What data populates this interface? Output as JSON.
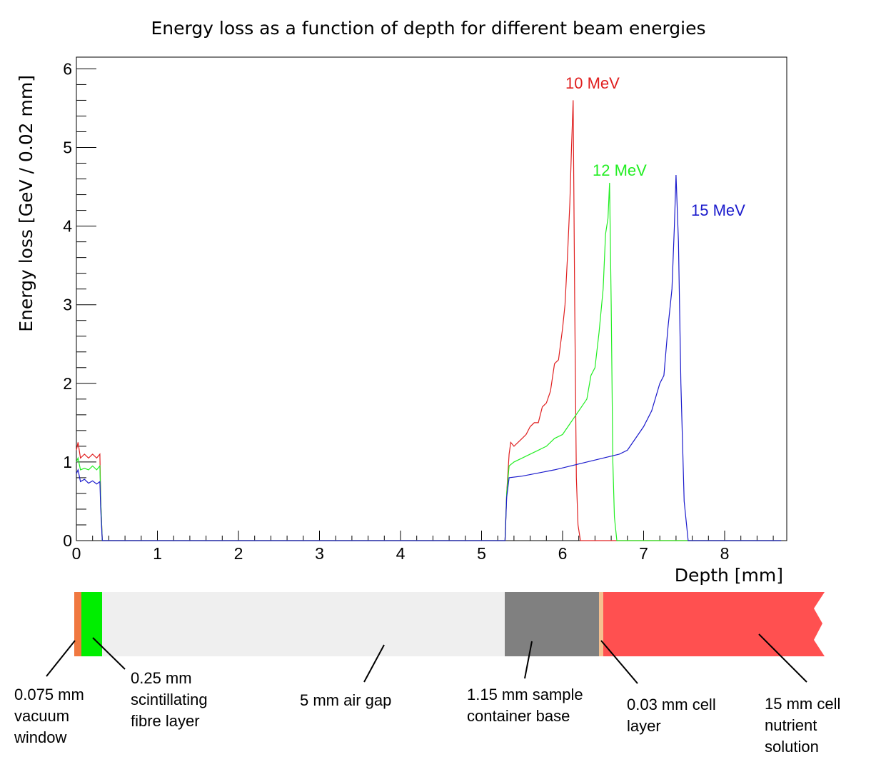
{
  "chart_data": {
    "type": "line",
    "title": "Energy loss as a function of depth for different beam energies",
    "xlabel": "Depth [mm]",
    "ylabel": "Energy loss [GeV / 0.02 mm]",
    "xlim": [
      0,
      8.7
    ],
    "ylim": [
      0,
      6.15
    ],
    "x_ticks": [
      "0",
      "1",
      "2",
      "3",
      "4",
      "5",
      "6",
      "7",
      "8"
    ],
    "y_ticks": [
      "0",
      "1",
      "2",
      "3",
      "4",
      "5",
      "6"
    ],
    "grid": false,
    "legend": "inline labels",
    "series": [
      {
        "name": "10 MeV",
        "color": "#e02020",
        "points": [
          [
            0,
            1.15
          ],
          [
            0.02,
            1.25
          ],
          [
            0.05,
            1.05
          ],
          [
            0.1,
            1.1
          ],
          [
            0.15,
            1.05
          ],
          [
            0.2,
            1.1
          ],
          [
            0.25,
            1.05
          ],
          [
            0.29,
            1.1
          ],
          [
            0.3,
            0.5
          ],
          [
            0.32,
            0.0
          ],
          [
            5.29,
            0.0
          ],
          [
            5.31,
            0.6
          ],
          [
            5.34,
            1.1
          ],
          [
            5.36,
            1.25
          ],
          [
            5.4,
            1.2
          ],
          [
            5.45,
            1.25
          ],
          [
            5.5,
            1.3
          ],
          [
            5.55,
            1.35
          ],
          [
            5.6,
            1.45
          ],
          [
            5.65,
            1.5
          ],
          [
            5.7,
            1.5
          ],
          [
            5.75,
            1.7
          ],
          [
            5.8,
            1.75
          ],
          [
            5.85,
            1.9
          ],
          [
            5.9,
            2.25
          ],
          [
            5.95,
            2.3
          ],
          [
            6.0,
            2.7
          ],
          [
            6.03,
            3.0
          ],
          [
            6.06,
            3.6
          ],
          [
            6.09,
            4.3
          ],
          [
            6.11,
            5.0
          ],
          [
            6.13,
            5.6
          ],
          [
            6.15,
            3.0
          ],
          [
            6.17,
            0.8
          ],
          [
            6.19,
            0.2
          ],
          [
            6.22,
            0.0
          ],
          [
            8.7,
            0.0
          ]
        ]
      },
      {
        "name": "12 MeV",
        "color": "#22ee22",
        "points": [
          [
            0,
            1.0
          ],
          [
            0.02,
            1.05
          ],
          [
            0.05,
            0.9
          ],
          [
            0.1,
            0.92
          ],
          [
            0.15,
            0.9
          ],
          [
            0.2,
            0.95
          ],
          [
            0.25,
            0.9
          ],
          [
            0.29,
            0.95
          ],
          [
            0.3,
            0.5
          ],
          [
            0.32,
            0.0
          ],
          [
            5.29,
            0.0
          ],
          [
            5.31,
            0.6
          ],
          [
            5.34,
            0.95
          ],
          [
            5.4,
            1.0
          ],
          [
            5.5,
            1.05
          ],
          [
            5.6,
            1.1
          ],
          [
            5.7,
            1.15
          ],
          [
            5.8,
            1.2
          ],
          [
            5.9,
            1.3
          ],
          [
            6.0,
            1.35
          ],
          [
            6.1,
            1.5
          ],
          [
            6.2,
            1.65
          ],
          [
            6.3,
            1.8
          ],
          [
            6.35,
            2.1
          ],
          [
            6.4,
            2.2
          ],
          [
            6.45,
            2.65
          ],
          [
            6.5,
            3.2
          ],
          [
            6.53,
            3.9
          ],
          [
            6.56,
            4.1
          ],
          [
            6.58,
            4.55
          ],
          [
            6.6,
            3.0
          ],
          [
            6.62,
            1.0
          ],
          [
            6.64,
            0.3
          ],
          [
            6.67,
            0.0
          ],
          [
            8.7,
            0.0
          ]
        ]
      },
      {
        "name": "15 MeV",
        "color": "#1a1acc",
        "points": [
          [
            0,
            0.85
          ],
          [
            0.02,
            0.9
          ],
          [
            0.05,
            0.75
          ],
          [
            0.1,
            0.78
          ],
          [
            0.15,
            0.73
          ],
          [
            0.2,
            0.76
          ],
          [
            0.25,
            0.72
          ],
          [
            0.29,
            0.75
          ],
          [
            0.3,
            0.4
          ],
          [
            0.32,
            0.0
          ],
          [
            5.29,
            0.0
          ],
          [
            5.31,
            0.55
          ],
          [
            5.34,
            0.8
          ],
          [
            5.5,
            0.82
          ],
          [
            5.7,
            0.86
          ],
          [
            5.9,
            0.9
          ],
          [
            6.1,
            0.95
          ],
          [
            6.3,
            1.0
          ],
          [
            6.5,
            1.05
          ],
          [
            6.7,
            1.1
          ],
          [
            6.8,
            1.15
          ],
          [
            6.9,
            1.3
          ],
          [
            7.0,
            1.45
          ],
          [
            7.1,
            1.65
          ],
          [
            7.2,
            2.0
          ],
          [
            7.25,
            2.1
          ],
          [
            7.3,
            2.7
          ],
          [
            7.35,
            3.2
          ],
          [
            7.38,
            4.0
          ],
          [
            7.4,
            4.65
          ],
          [
            7.43,
            3.8
          ],
          [
            7.46,
            2.0
          ],
          [
            7.5,
            0.5
          ],
          [
            7.55,
            0.0
          ],
          [
            8.7,
            0.0
          ]
        ]
      }
    ]
  },
  "geometry_strip": {
    "layers": [
      {
        "name": "0.075 mm vacuum window",
        "color": "#f07840",
        "label_lines": [
          "0.075 mm",
          "vacuum",
          "window"
        ]
      },
      {
        "name": "0.25 mm scintillating fibre layer",
        "color": "#00ee00",
        "label_lines": [
          "0.25 mm",
          "scintillating",
          "fibre layer"
        ]
      },
      {
        "name": "5 mm air gap",
        "color": "#efefef",
        "label_lines": [
          "5 mm air gap"
        ]
      },
      {
        "name": "1.15 mm sample container base",
        "color": "#808080",
        "label_lines": [
          "1.15 mm sample",
          "container base"
        ]
      },
      {
        "name": "0.03 mm cell layer",
        "color": "#f5c090",
        "label_lines": [
          "0.03 mm cell",
          "layer"
        ]
      },
      {
        "name": "15 mm cell nutrient solution",
        "color": "#ff5050",
        "label_lines": [
          "15 mm cell",
          "nutrient",
          "solution"
        ]
      }
    ]
  }
}
